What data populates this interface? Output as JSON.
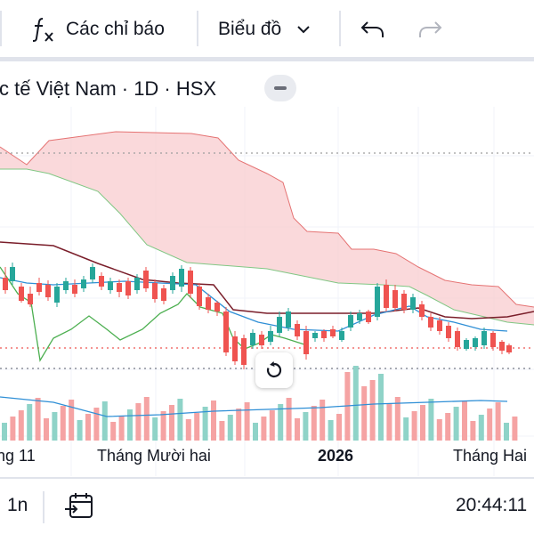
{
  "toolbar": {
    "indicators_label": "Các chỉ báo",
    "chart_type_label": "Biểu đồ",
    "indicators_icon": "function-fx-icon",
    "chart_type_icon": "chevron-down-icon",
    "undo_icon": "undo-icon",
    "redo_icon": "redo-icon"
  },
  "header": {
    "symbol_title": "c tế Việt Nam · 1D · HSX",
    "collapse_icon": "minus-icon"
  },
  "x_axis": {
    "labels": [
      "ng 11",
      "Tháng Mười hai",
      "2026",
      "Tháng Hai"
    ]
  },
  "reset_icon": "reset-view-icon",
  "bottom_bar": {
    "interval": "1n",
    "goto_date_icon": "calendar-goto-icon",
    "clock": "20:44:11"
  },
  "colors": {
    "up": "#26a69a",
    "down": "#ef5350",
    "cloud": "#f8c9cc",
    "base_line": "#7a1e2a",
    "conversion_line": "#2f8fd6",
    "lagging_line": "#4caf50",
    "volume_ma": "#2f8fd6"
  }
}
